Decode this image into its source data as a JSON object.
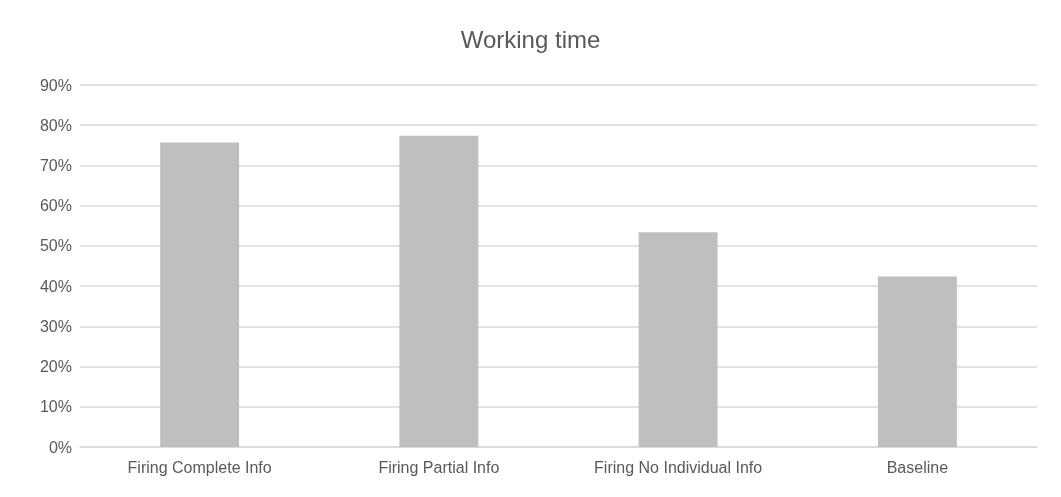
{
  "chart_data": {
    "type": "bar",
    "title": "Working time",
    "categories": [
      "Firing Complete Info",
      "Firing Partial Info",
      "Firing No Individual Info",
      "Baseline"
    ],
    "values": [
      75.7,
      77.4,
      53.4,
      42.4
    ],
    "color": "#bfbfbf",
    "ylim": [
      0,
      90
    ],
    "yticks": [
      {
        "value": 0,
        "label": "0%"
      },
      {
        "value": 10,
        "label": "10%"
      },
      {
        "value": 20,
        "label": "20%"
      },
      {
        "value": 30,
        "label": "30%"
      },
      {
        "value": 40,
        "label": "40%"
      },
      {
        "value": 50,
        "label": "50%"
      },
      {
        "value": 60,
        "label": "60%"
      },
      {
        "value": 70,
        "label": "70%"
      },
      {
        "value": 80,
        "label": "80%"
      },
      {
        "value": 90,
        "label": "90%"
      }
    ],
    "grid": "y"
  }
}
